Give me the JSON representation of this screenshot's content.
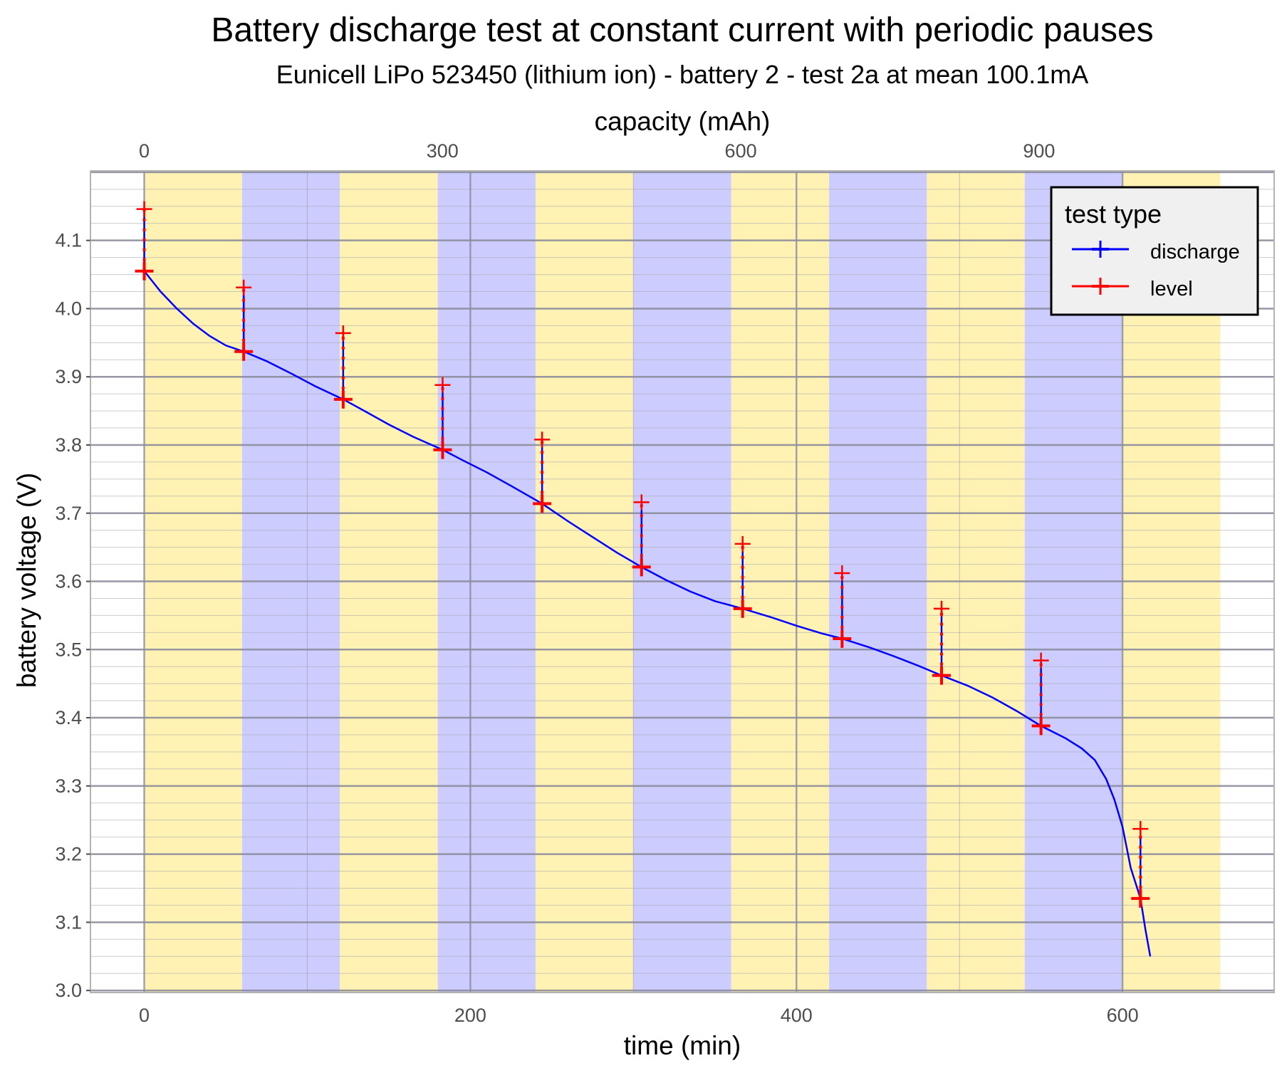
{
  "chart_data": {
    "type": "line",
    "title": "Battery discharge test at constant current with periodic pauses",
    "subtitle": "Eunicell LiPo 523450 (lithium ion) - battery 2 - test 2a at mean 100.1mA",
    "xlabel": "time (min)",
    "ylabel": "battery voltage (V)",
    "x2label": "capacity (mAh)",
    "xlim": [
      -33,
      693
    ],
    "ylim": [
      2.997,
      4.202
    ],
    "xticks": [
      0,
      200,
      400,
      600
    ],
    "yticks": [
      3.0,
      3.1,
      3.2,
      3.3,
      3.4,
      3.5,
      3.6,
      3.7,
      3.8,
      3.9,
      4.0,
      4.1
    ],
    "x2ticks": [
      0,
      300,
      600,
      900
    ],
    "x2_mAh_per_min": 1.64,
    "grid": true,
    "bands": {
      "width_min": 60,
      "count": 11,
      "colors": [
        "#fff2b3",
        "#ccccff"
      ]
    },
    "legend": {
      "title": "test type",
      "placement": "top-right",
      "entries": [
        {
          "name": "discharge",
          "color": "#0000ff"
        },
        {
          "name": "level",
          "color": "#ff0000"
        }
      ]
    },
    "series": [
      {
        "name": "discharge",
        "color": "#0000ff",
        "x": [
          0,
          10,
          20,
          30,
          40,
          50,
          61,
          75,
          90,
          105,
          122,
          135,
          150,
          165,
          183,
          195,
          210,
          225,
          244,
          260,
          275,
          290,
          305,
          320,
          335,
          350,
          367,
          385,
          400,
          415,
          428,
          445,
          460,
          475,
          489,
          505,
          520,
          535,
          550,
          565,
          575,
          583,
          590,
          595,
          600,
          605,
          611,
          614,
          617
        ],
        "y": [
          4.055,
          4.025,
          4.0,
          3.978,
          3.96,
          3.946,
          3.937,
          3.923,
          3.905,
          3.886,
          3.867,
          3.85,
          3.83,
          3.812,
          3.793,
          3.778,
          3.76,
          3.74,
          3.714,
          3.688,
          3.665,
          3.642,
          3.621,
          3.602,
          3.585,
          3.571,
          3.56,
          3.547,
          3.535,
          3.524,
          3.516,
          3.503,
          3.49,
          3.476,
          3.462,
          3.447,
          3.43,
          3.41,
          3.388,
          3.37,
          3.355,
          3.338,
          3.31,
          3.28,
          3.24,
          3.18,
          3.135,
          3.09,
          3.05
        ]
      },
      {
        "name": "level",
        "color": "#ff0000",
        "x": [
          0,
          61,
          122,
          183,
          244,
          305,
          367,
          428,
          489,
          550,
          611
        ],
        "low": [
          4.055,
          3.937,
          3.867,
          3.793,
          3.714,
          3.621,
          3.56,
          3.516,
          3.462,
          3.388,
          3.135
        ],
        "high": [
          4.146,
          4.031,
          3.964,
          3.888,
          3.808,
          3.716,
          3.655,
          3.612,
          3.56,
          3.484,
          3.237
        ]
      }
    ]
  }
}
